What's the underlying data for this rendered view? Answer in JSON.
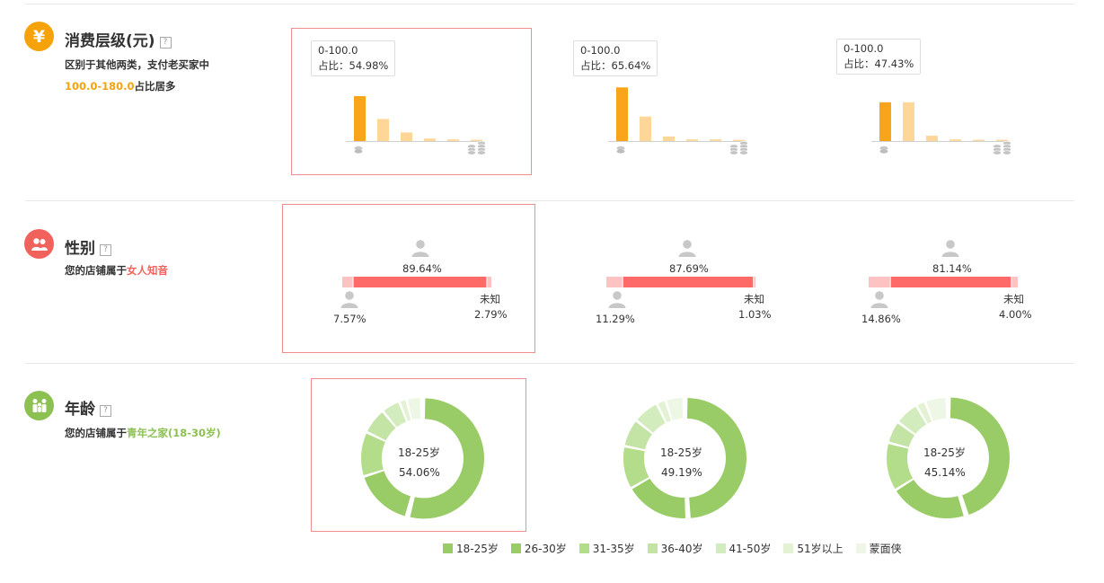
{
  "sections": {
    "spend": {
      "title": "消费层级(元)",
      "help": "?",
      "desc_line1": "区别于其他两类，支付老买家中",
      "desc_highlight": "100.0-180.0",
      "desc_suffix": "占比居多"
    },
    "gender": {
      "title": "性别",
      "help": "?",
      "desc_prefix": "您的店铺属于",
      "desc_highlight": "女人知音"
    },
    "age": {
      "title": "年龄",
      "help": "?",
      "desc_prefix": "您的店铺属于",
      "desc_highlight": "青年之家(18-30岁)"
    }
  },
  "icons": {
    "spend": "yen-icon",
    "gender": "people-icon",
    "age": "family-icon",
    "person": "person-icon",
    "coin_single": "coin-stack-small-icon",
    "coin_multi": "coin-stack-large-icon"
  },
  "colors": {
    "spend_icon": "#f5a20b",
    "gender_icon": "#f2625c",
    "age_icon": "#8cc152",
    "bar_active": "#f8a51b",
    "bar_inactive": "#fdd698",
    "female": "#fd6a68",
    "male": "#fdc3c3",
    "unknown": "#fdc3c3",
    "age_palette": [
      "#99cc66",
      "#99cc66",
      "#b3dd8a",
      "#c3e4a5",
      "#d3ecbe",
      "#e2f2d3",
      "#eef7e6"
    ]
  },
  "chart_data": [
    {
      "type": "bar",
      "panel": 1,
      "tooltip_range": "0-100.0",
      "tooltip_ratio": "占比：54.98%",
      "values": [
        54.98,
        27.0,
        10.5,
        3.0,
        2.0,
        1.5
      ],
      "active_index": 0
    },
    {
      "type": "bar",
      "panel": 2,
      "tooltip_range": "0-100.0",
      "tooltip_ratio": "占比：65.64%",
      "values": [
        65.64,
        30.0,
        5.5,
        2.0,
        2.0,
        1.5
      ],
      "active_index": 0
    },
    {
      "type": "bar",
      "panel": 3,
      "tooltip_range": "0-100.0",
      "tooltip_ratio": "占比：47.43%",
      "values": [
        47.43,
        47.43,
        6.5,
        2.0,
        1.5,
        1.5
      ],
      "active_index": 0
    },
    {
      "type": "bar",
      "panel": 1,
      "segments": [
        7.57,
        89.64,
        2.79
      ],
      "female_label": "89.64%",
      "male_label": "7.57%",
      "unknown_name": "未知",
      "unknown_label": "2.79%"
    },
    {
      "type": "bar",
      "panel": 2,
      "segments": [
        11.29,
        87.69,
        1.03
      ],
      "female_label": "87.69%",
      "male_label": "11.29%",
      "unknown_name": "未知",
      "unknown_label": "1.03%"
    },
    {
      "type": "bar",
      "panel": 3,
      "segments": [
        14.86,
        81.14,
        4.0
      ],
      "female_label": "81.14%",
      "male_label": "14.86%",
      "unknown_name": "未知",
      "unknown_label": "4.00%"
    },
    {
      "type": "pie",
      "panel": 1,
      "center_label": "18-25岁",
      "center_value": "54.06%",
      "values": [
        54.06,
        16.0,
        12.0,
        7.0,
        5.0,
        2.0,
        3.94
      ]
    },
    {
      "type": "pie",
      "panel": 2,
      "center_label": "18-25岁",
      "center_value": "49.19%",
      "values": [
        49.19,
        17.5,
        11.5,
        7.5,
        7.0,
        2.5,
        4.81
      ]
    },
    {
      "type": "pie",
      "panel": 3,
      "center_label": "18-25岁",
      "center_value": "45.14%",
      "values": [
        45.14,
        21.0,
        13.0,
        6.0,
        6.5,
        2.5,
        5.86
      ]
    }
  ],
  "legend": [
    "18-25岁",
    "26-30岁",
    "31-35岁",
    "36-40岁",
    "41-50岁",
    "51岁以上",
    "蒙面侠"
  ]
}
